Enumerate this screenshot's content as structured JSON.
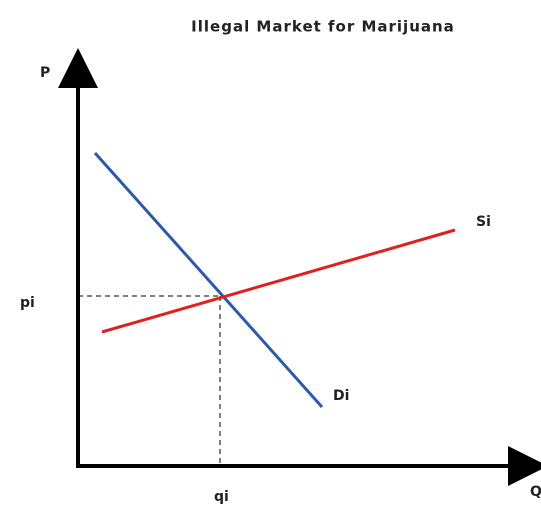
{
  "title": "Illegal Market for Marijuana",
  "axes": {
    "y_label": "P",
    "x_label": "Q"
  },
  "equilibrium": {
    "price_label": "pi",
    "quantity_label": "qi"
  },
  "curves": {
    "supply_label": "Si",
    "demand_label": "Di"
  }
}
